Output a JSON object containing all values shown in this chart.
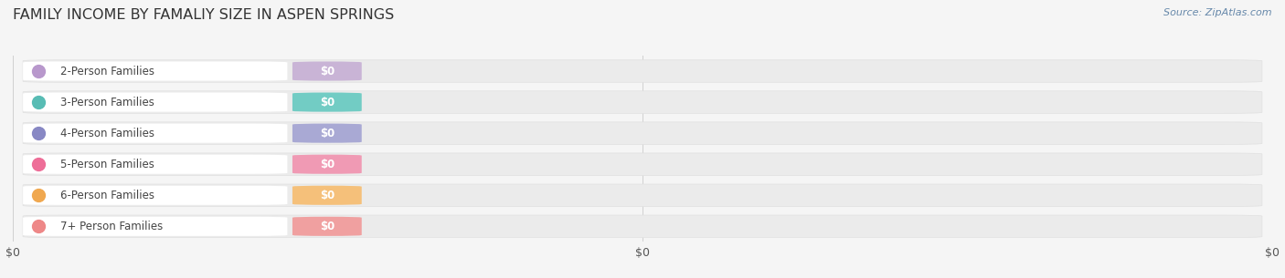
{
  "title": "FAMILY INCOME BY FAMALIY SIZE IN ASPEN SPRINGS",
  "source_text": "Source: ZipAtlas.com",
  "categories": [
    "2-Person Families",
    "3-Person Families",
    "4-Person Families",
    "5-Person Families",
    "6-Person Families",
    "7+ Person Families"
  ],
  "values": [
    0,
    0,
    0,
    0,
    0,
    0
  ],
  "bar_colors": [
    "#c9b4d6",
    "#72ccc4",
    "#a9a9d4",
    "#f09ab4",
    "#f5c07a",
    "#f0a0a0"
  ],
  "dot_colors": [
    "#b898cc",
    "#58bcb4",
    "#8888c4",
    "#ee6e98",
    "#f0a850",
    "#ee8888"
  ],
  "background_color": "#f5f5f5",
  "bar_bg_color": "#ebebeb",
  "bar_bg_border_color": "#dddddd",
  "title_fontsize": 11.5,
  "label_fontsize": 8.5,
  "value_fontsize": 8.5,
  "source_fontsize": 8.0,
  "xtick_positions": [
    0.0,
    0.5,
    1.0
  ],
  "xtick_labels": [
    "$0",
    "$0",
    "$0"
  ]
}
